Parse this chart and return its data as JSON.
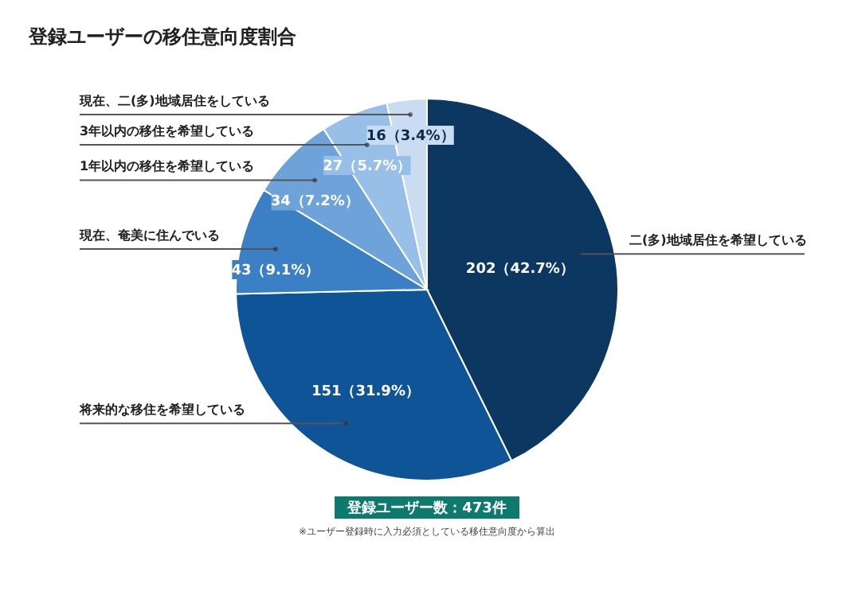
{
  "chart_data": {
    "type": "pie",
    "title": "登録ユーザーの移住意向度割合",
    "categories": [
      "二(多)地域居住を希望している",
      "将来的な移住を希望している",
      "現在、奄美に住んでいる",
      "1年以内の移住を希望している",
      "3年以内の移住を希望している",
      "現在、二(多)地域居住をしている"
    ],
    "values": [
      202,
      151,
      43,
      34,
      27,
      16
    ],
    "value_labels": [
      "202（42.7%）",
      "151（31.9%）",
      "43（9.1%）",
      "34（7.2%）",
      "27（5.7%）",
      "16（3.4%）"
    ],
    "colors": [
      "#0b3760",
      "#0f5497",
      "#3b7fc4",
      "#6ea3da",
      "#98bfe8",
      "#cadcf1"
    ],
    "annotations": [
      "登録ユーザー数：473件",
      "※ユーザー登録時に入力必須としている移住意向度から算出"
    ],
    "legend": false
  }
}
